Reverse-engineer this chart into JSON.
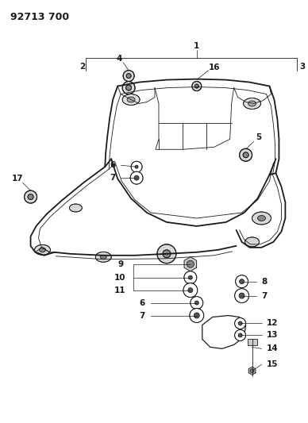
{
  "title": "92713 700",
  "bg_color": "#ffffff",
  "line_color": "#1a1a1a",
  "title_fontsize": 9,
  "label_fontsize": 7.5,
  "fig_width": 3.88,
  "fig_height": 5.33,
  "dpi": 100
}
